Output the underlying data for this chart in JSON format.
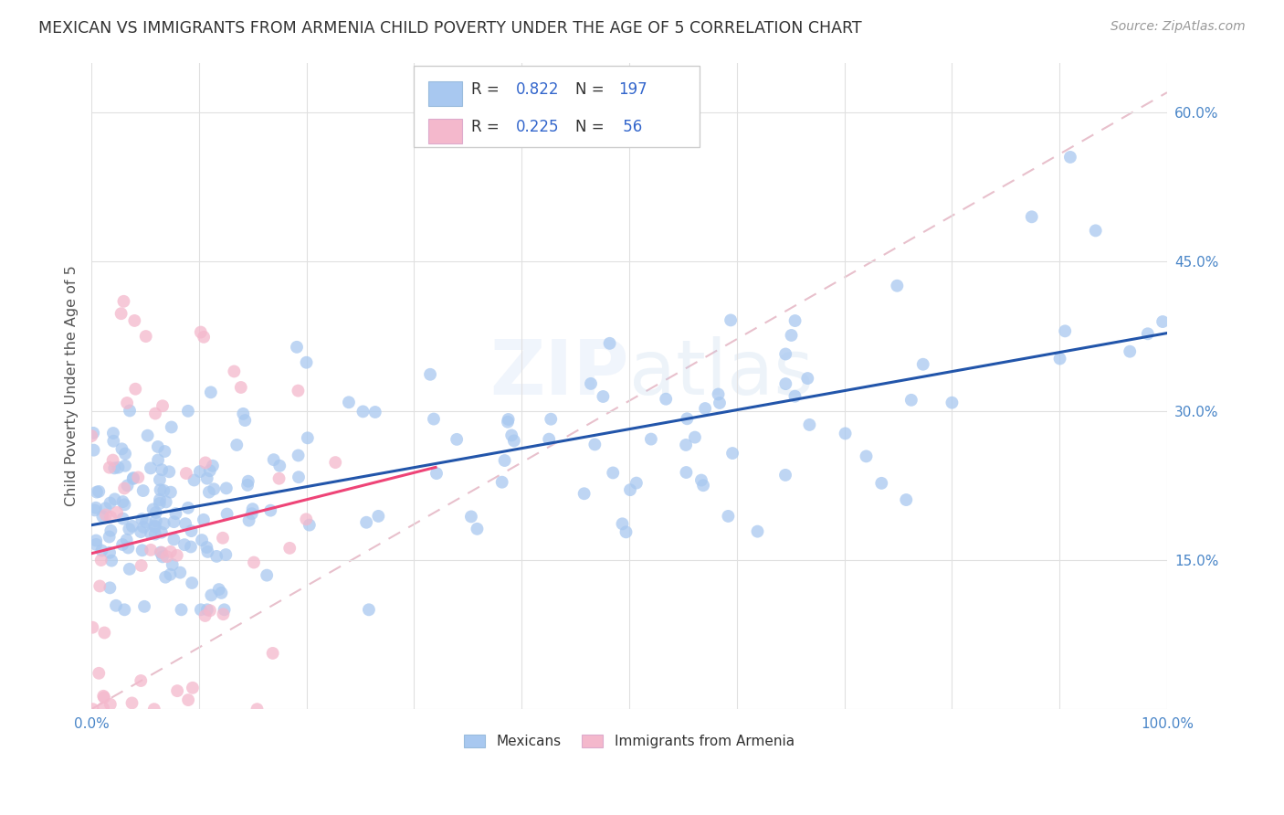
{
  "title": "MEXICAN VS IMMIGRANTS FROM ARMENIA CHILD POVERTY UNDER THE AGE OF 5 CORRELATION CHART",
  "source": "Source: ZipAtlas.com",
  "ylabel": "Child Poverty Under the Age of 5",
  "watermark": "ZIPatlas",
  "blue_R": 0.822,
  "blue_N": 197,
  "pink_R": 0.225,
  "pink_N": 56,
  "blue_color": "#a8c8f0",
  "pink_color": "#f4b8cc",
  "blue_line_color": "#2255aa",
  "pink_line_color": "#ee4477",
  "diag_dash_color": "#e8c0cc",
  "title_color": "#333333",
  "tick_color": "#4a86c8",
  "legend_text_color": "#333333",
  "legend_val_color": "#3366cc",
  "source_color": "#999999",
  "ylabel_color": "#555555",
  "xlim": [
    0.0,
    1.0
  ],
  "ylim": [
    0.0,
    0.65
  ],
  "xticks": [
    0.0,
    0.1,
    0.2,
    0.3,
    0.4,
    0.5,
    0.6,
    0.7,
    0.8,
    0.9,
    1.0
  ],
  "yticks": [
    0.0,
    0.15,
    0.3,
    0.45,
    0.6
  ],
  "background_color": "#ffffff",
  "grid_color": "#e0e0e0",
  "blue_seed": 1234,
  "pink_seed": 5678,
  "marker_size": 100,
  "marker_alpha": 0.75
}
